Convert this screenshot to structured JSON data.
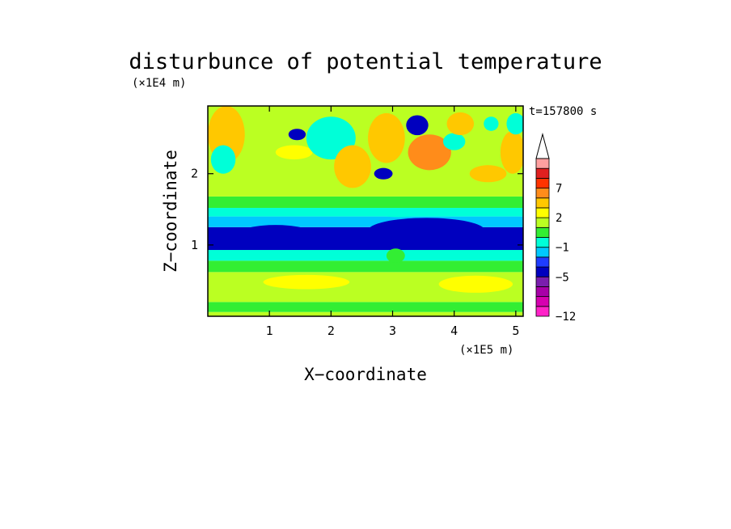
{
  "chart_data": {
    "type": "heatmap",
    "title": "disturbunce of potential temperature",
    "xlabel": "X−coordinate",
    "ylabel": "Z−coordinate",
    "x_unit": "(×1E5 m)",
    "y_unit": "(×1E4 m)",
    "time_label": "t=157800 s",
    "xlim": [
      0,
      5.12
    ],
    "ylim": [
      0,
      2.95
    ],
    "x_ticks": [
      1,
      2,
      3,
      4,
      5
    ],
    "y_ticks": [
      1,
      2
    ],
    "colorbar": {
      "levels": [
        -12,
        -11,
        -9,
        -7,
        -5,
        -4,
        -3,
        -1,
        0,
        1,
        2,
        3,
        5,
        7,
        9,
        11,
        12
      ],
      "colors": [
        "#ff22c8",
        "#d600b0",
        "#a800a8",
        "#7a1eae",
        "#0000bf",
        "#1f3dff",
        "#00c8ff",
        "#00ffd8",
        "#33ee33",
        "#bbff22",
        "#ffff00",
        "#ffc800",
        "#ff8c1a",
        "#ff3300",
        "#e02020",
        "#ffa0a0"
      ],
      "tick_labels": [
        {
          "value": -12,
          "label": "−12"
        },
        {
          "value": -5,
          "label": "−5"
        },
        {
          "value": -1,
          "label": "−1"
        },
        {
          "value": 2,
          "label": "2"
        },
        {
          "value": 7,
          "label": "7"
        }
      ],
      "extend": "max"
    },
    "bands": [
      {
        "zmin": 0.0,
        "zmax": 0.06,
        "value": 1.5
      },
      {
        "zmin": 0.06,
        "zmax": 0.2,
        "value": 0.5
      },
      {
        "zmin": 0.2,
        "zmax": 0.62,
        "value": 1.6
      },
      {
        "zmin": 0.62,
        "zmax": 0.78,
        "value": 0.5
      },
      {
        "zmin": 0.78,
        "zmax": 0.93,
        "value": -0.5
      },
      {
        "zmin": 0.93,
        "zmax": 1.25,
        "value": -4.5
      },
      {
        "zmin": 1.25,
        "zmax": 1.4,
        "value": -2
      },
      {
        "zmin": 1.4,
        "zmax": 1.52,
        "value": -0.5
      },
      {
        "zmin": 1.52,
        "zmax": 1.68,
        "value": 0.5
      },
      {
        "zmin": 1.68,
        "zmax": 2.95,
        "value": 1.5
      }
    ],
    "features": [
      {
        "x": 3.55,
        "z": 1.2,
        "rx": 0.95,
        "rz": 0.18,
        "value": -5
      },
      {
        "x": 1.1,
        "z": 1.18,
        "rx": 0.55,
        "rz": 0.1,
        "value": -5
      },
      {
        "x": 4.35,
        "z": 0.45,
        "rx": 0.6,
        "rz": 0.12,
        "value": 2.5
      },
      {
        "x": 1.6,
        "z": 0.48,
        "rx": 0.7,
        "rz": 0.1,
        "value": 2.5
      },
      {
        "x": 0.3,
        "z": 2.55,
        "rx": 0.3,
        "rz": 0.4,
        "value": 4
      },
      {
        "x": 0.25,
        "z": 2.2,
        "rx": 0.2,
        "rz": 0.2,
        "value": -1
      },
      {
        "x": 1.45,
        "z": 2.55,
        "rx": 0.14,
        "rz": 0.08,
        "value": -5
      },
      {
        "x": 1.4,
        "z": 2.3,
        "rx": 0.3,
        "rz": 0.1,
        "value": 2.5
      },
      {
        "x": 2.0,
        "z": 2.5,
        "rx": 0.4,
        "rz": 0.3,
        "value": -1
      },
      {
        "x": 2.35,
        "z": 2.1,
        "rx": 0.3,
        "rz": 0.3,
        "value": 3
      },
      {
        "x": 2.9,
        "z": 2.5,
        "rx": 0.3,
        "rz": 0.35,
        "value": 4
      },
      {
        "x": 2.85,
        "z": 2.0,
        "rx": 0.15,
        "rz": 0.08,
        "value": -5
      },
      {
        "x": 3.4,
        "z": 2.68,
        "rx": 0.18,
        "rz": 0.14,
        "value": -5
      },
      {
        "x": 3.6,
        "z": 2.3,
        "rx": 0.35,
        "rz": 0.25,
        "value": 5
      },
      {
        "x": 4.0,
        "z": 2.45,
        "rx": 0.18,
        "rz": 0.12,
        "value": -1
      },
      {
        "x": 4.1,
        "z": 2.7,
        "rx": 0.22,
        "rz": 0.16,
        "value": 4
      },
      {
        "x": 4.55,
        "z": 2.0,
        "rx": 0.3,
        "rz": 0.12,
        "value": 4
      },
      {
        "x": 4.6,
        "z": 2.7,
        "rx": 0.12,
        "rz": 0.1,
        "value": -1
      },
      {
        "x": 4.95,
        "z": 2.3,
        "rx": 0.2,
        "rz": 0.3,
        "value": 3
      },
      {
        "x": 5.0,
        "z": 2.7,
        "rx": 0.15,
        "rz": 0.15,
        "value": -1
      },
      {
        "x": 3.1,
        "z": 1.45,
        "rx": 0.35,
        "rz": 0.06,
        "value": -1
      },
      {
        "x": 3.05,
        "z": 0.85,
        "rx": 0.15,
        "rz": 0.1,
        "value": 0.5
      }
    ]
  }
}
